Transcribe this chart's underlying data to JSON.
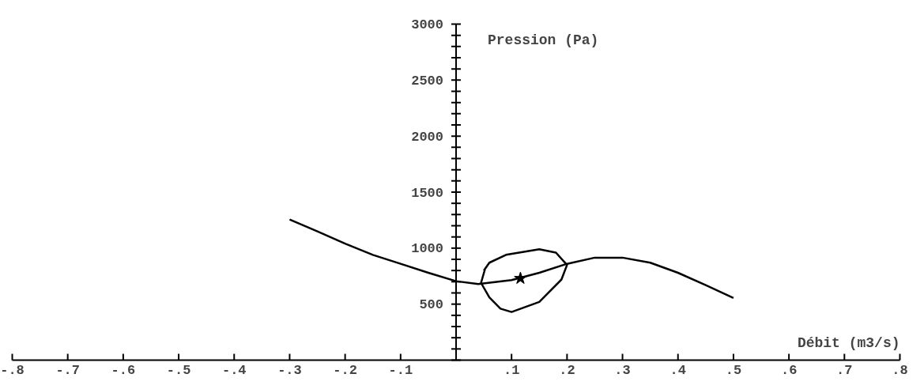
{
  "chart_data": {
    "type": "line",
    "xlabel": "Débit (m3/s)",
    "ylabel": "Pression (Pa)",
    "xlim": [
      -0.8,
      0.8
    ],
    "ylim": [
      0,
      3000
    ],
    "xticks": [
      {
        "value": -0.8,
        "label": "-.8"
      },
      {
        "value": -0.7,
        "label": "-.7"
      },
      {
        "value": -0.6,
        "label": "-.6"
      },
      {
        "value": -0.5,
        "label": "-.5"
      },
      {
        "value": -0.4,
        "label": "-.4"
      },
      {
        "value": -0.3,
        "label": "-.3"
      },
      {
        "value": -0.2,
        "label": "-.2"
      },
      {
        "value": -0.1,
        "label": "-.1"
      },
      {
        "value": 0.1,
        "label": ".1"
      },
      {
        "value": 0.2,
        "label": ".2"
      },
      {
        "value": 0.3,
        "label": ".3"
      },
      {
        "value": 0.4,
        "label": ".4"
      },
      {
        "value": 0.5,
        "label": ".5"
      },
      {
        "value": 0.6,
        "label": ".6"
      },
      {
        "value": 0.7,
        "label": ".7"
      },
      {
        "value": 0.8,
        "label": ".8"
      }
    ],
    "yticks": [
      500,
      1000,
      1500,
      2000,
      2500,
      3000
    ],
    "grid": false,
    "series": [
      {
        "color": "#000000",
        "x": [
          -0.3,
          -0.25,
          -0.2,
          -0.15,
          -0.1,
          -0.05,
          0,
          0.04,
          0.1,
          0.15,
          0.2,
          0.25,
          0.3,
          0.35,
          0.4,
          0.45,
          0.5
        ],
        "values": [
          1255,
          1150,
          1040,
          940,
          860,
          780,
          705,
          680,
          715,
          780,
          860,
          915,
          915,
          870,
          780,
          670,
          555
        ]
      },
      {
        "color": "#000000",
        "x": [
          0.05,
          0.06,
          0.09,
          0.15,
          0.18,
          0.2,
          0.19,
          0.15,
          0.1,
          0.08,
          0.06,
          0.045,
          0.052
        ],
        "values": [
          800,
          870,
          940,
          990,
          960,
          850,
          720,
          520,
          430,
          460,
          560,
          690,
          810
        ]
      },
      {
        "type": "scatter",
        "marker": "star",
        "color": "#000000",
        "x": [
          0.116
        ],
        "values": [
          730
        ]
      }
    ]
  }
}
